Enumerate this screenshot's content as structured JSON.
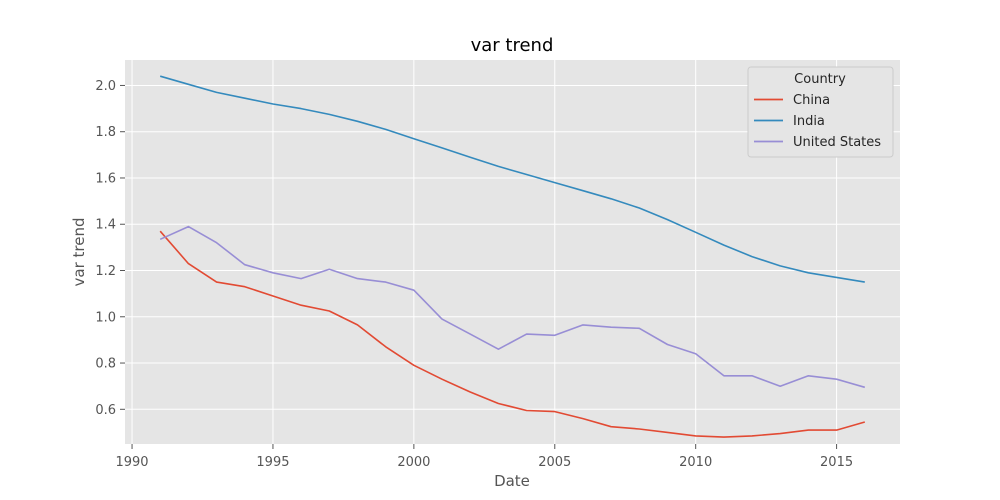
{
  "chart_data": {
    "type": "line",
    "title": "var trend",
    "xlabel": "Date",
    "ylabel": "var trend",
    "xlim": [
      1989.75,
      2017.25
    ],
    "ylim": [
      0.45,
      2.11
    ],
    "x_ticks": [
      1990,
      1995,
      2000,
      2005,
      2010,
      2015
    ],
    "y_ticks": [
      0.6,
      0.8,
      1.0,
      1.2,
      1.4,
      1.6,
      1.8,
      2.0
    ],
    "grid": true,
    "legend": {
      "title": "Country",
      "position": "top-right"
    },
    "x": [
      1991,
      1992,
      1993,
      1994,
      1995,
      1996,
      1997,
      1998,
      1999,
      2000,
      2001,
      2002,
      2003,
      2004,
      2005,
      2006,
      2007,
      2008,
      2009,
      2010,
      2011,
      2012,
      2013,
      2014,
      2015,
      2016
    ],
    "series": [
      {
        "name": "China",
        "color": "#E24A33",
        "values": [
          1.37,
          1.23,
          1.15,
          1.13,
          1.09,
          1.05,
          1.025,
          0.965,
          0.87,
          0.79,
          0.73,
          0.675,
          0.625,
          0.595,
          0.59,
          0.56,
          0.525,
          0.515,
          0.5,
          0.485,
          0.48,
          0.485,
          0.495,
          0.51,
          0.51,
          0.545
        ]
      },
      {
        "name": "India",
        "color": "#348ABD",
        "values": [
          2.04,
          2.005,
          1.97,
          1.945,
          1.92,
          1.9,
          1.875,
          1.845,
          1.81,
          1.77,
          1.73,
          1.69,
          1.65,
          1.615,
          1.58,
          1.545,
          1.51,
          1.47,
          1.42,
          1.365,
          1.31,
          1.26,
          1.22,
          1.19,
          1.17,
          1.15
        ]
      },
      {
        "name": "United States",
        "color": "#988ED5",
        "values": [
          1.335,
          1.39,
          1.32,
          1.225,
          1.19,
          1.165,
          1.205,
          1.165,
          1.15,
          1.115,
          0.99,
          0.925,
          0.86,
          0.925,
          0.92,
          0.965,
          0.955,
          0.95,
          0.88,
          0.84,
          0.745,
          0.745,
          0.7,
          0.745,
          0.73,
          0.695
        ]
      }
    ]
  }
}
